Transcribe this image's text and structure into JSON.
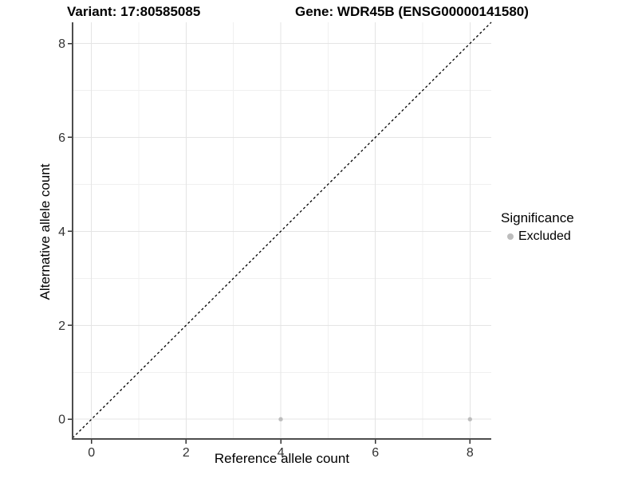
{
  "chart_data": {
    "type": "scatter",
    "title_left": "Variant: 17:80585085",
    "title_right": "Gene: WDR45B (ENSG00000141580)",
    "xlabel": "Reference allele count",
    "ylabel": "Alternative allele count",
    "xlim": [
      -0.4,
      8.45
    ],
    "ylim": [
      -0.42,
      8.45
    ],
    "xticks": [
      0,
      2,
      4,
      6,
      8
    ],
    "yticks": [
      0,
      2,
      4,
      6,
      8
    ],
    "xticks_minor": [
      1,
      3,
      5,
      7
    ],
    "yticks_minor": [
      1,
      3,
      5,
      7
    ],
    "grid": "major+minor",
    "reference_line": {
      "equation": "y = x",
      "style": "dashed",
      "color": "#000000"
    },
    "series": [
      {
        "name": "Excluded",
        "color": "#bdbdbd",
        "points": [
          {
            "x": 4,
            "y": 0
          },
          {
            "x": 8,
            "y": 0
          }
        ]
      }
    ],
    "legend": {
      "title": "Significance",
      "position": "right",
      "items": [
        {
          "label": "Excluded",
          "color": "#bdbdbd"
        }
      ]
    }
  },
  "colors": {
    "background": "#ffffff",
    "grid_major": "#e4e4e4",
    "grid_minor": "#f0f0f0",
    "axis_line": "#4d4d4d",
    "tick_mark": "#333333",
    "tick_label": "#333333",
    "point": "#bdbdbd",
    "reference_line": "#000000"
  }
}
